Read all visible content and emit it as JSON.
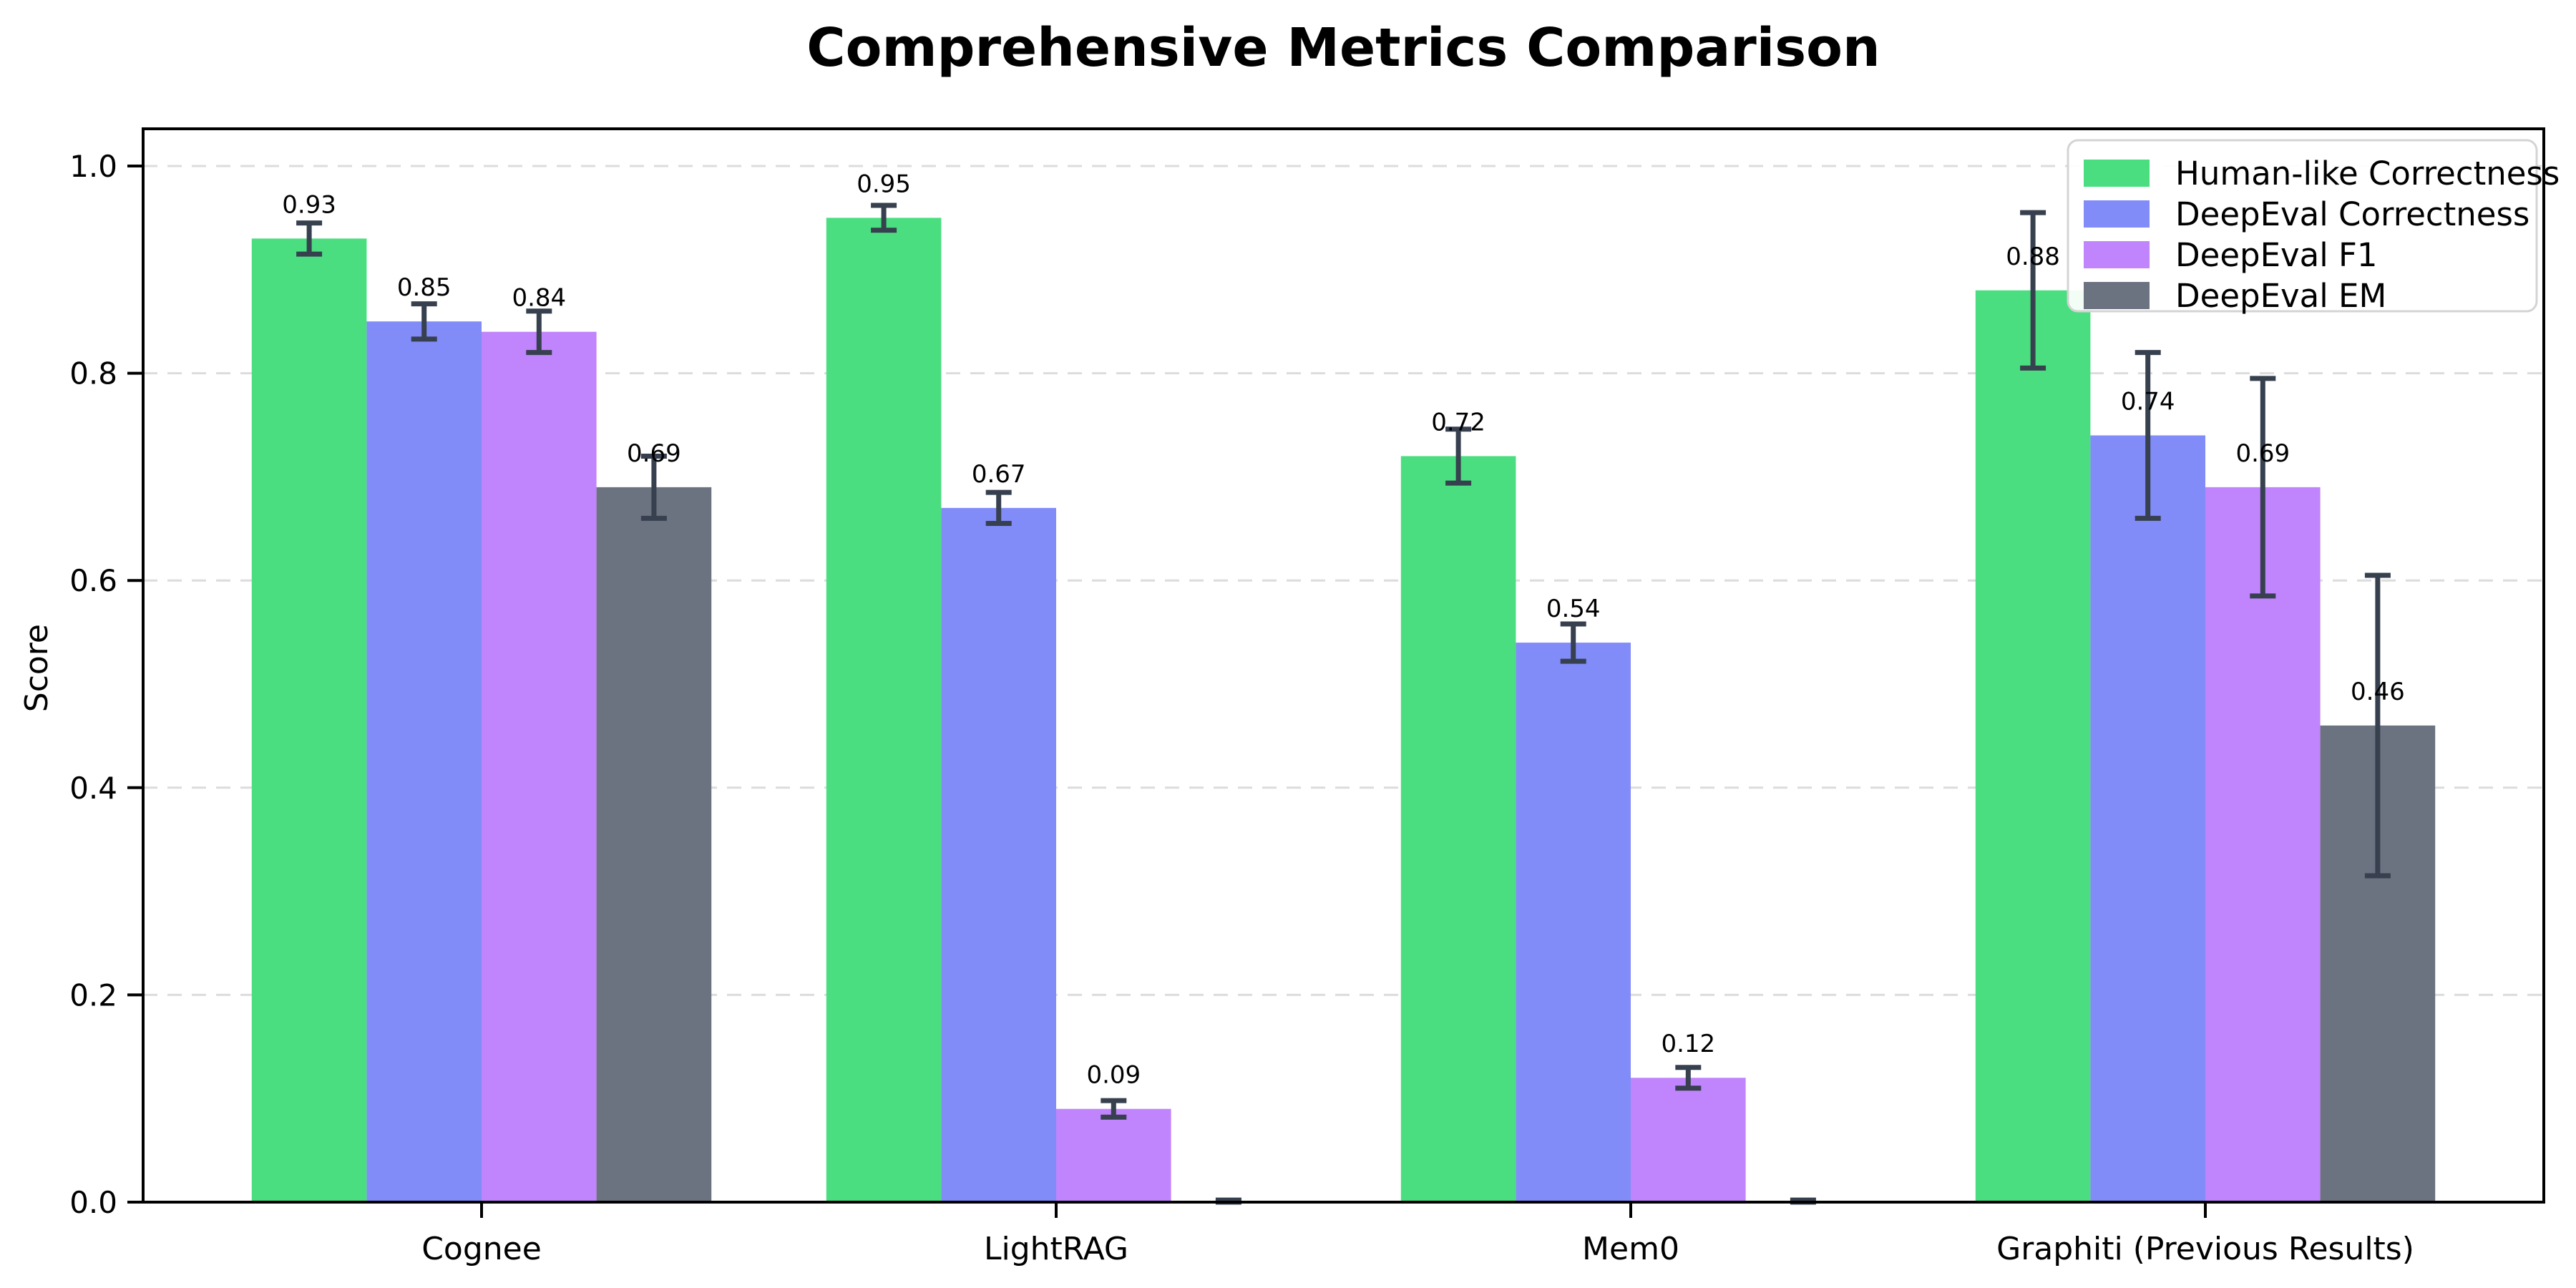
{
  "chart_data": {
    "type": "bar",
    "title": "Comprehensive Metrics Comparison",
    "ylabel": "Score",
    "xlabel": "",
    "categories": [
      "Cognee",
      "LightRAG",
      "Mem0",
      "Graphiti (Previous Results)"
    ],
    "series": [
      {
        "name": "Human-like Correctness",
        "color": "#4ade80",
        "values": [
          0.93,
          0.95,
          0.72,
          0.88
        ],
        "errors": [
          0.015,
          0.012,
          0.026,
          0.075
        ],
        "labels": [
          "0.93",
          "0.95",
          "0.72",
          "0.88"
        ]
      },
      {
        "name": "DeepEval Correctness",
        "color": "#818cf8",
        "values": [
          0.85,
          0.67,
          0.54,
          0.74
        ],
        "errors": [
          0.017,
          0.015,
          0.018,
          0.08
        ],
        "labels": [
          "0.85",
          "0.67",
          "0.54",
          "0.74"
        ]
      },
      {
        "name": "DeepEval F1",
        "color": "#c084fc",
        "values": [
          0.84,
          0.09,
          0.12,
          0.69
        ],
        "errors": [
          0.02,
          0.008,
          0.01,
          0.105
        ],
        "labels": [
          "0.84",
          "0.09",
          "0.12",
          "0.69"
        ]
      },
      {
        "name": "DeepEval EM",
        "color": "#6b7280",
        "values": [
          0.69,
          0.0,
          0.0,
          0.46
        ],
        "errors": [
          0.03,
          0.002,
          0.002,
          0.145
        ],
        "labels": [
          "0.69",
          null,
          null,
          "0.46"
        ]
      }
    ],
    "yticks": [
      0.0,
      0.2,
      0.4,
      0.6,
      0.8,
      1.0
    ],
    "ylim": [
      0,
      1.036
    ],
    "grid": "horizontal-dashed",
    "grid_color": "#dcdcdc",
    "legend_position": "upper-right",
    "error_bar_color": "#36404e",
    "axis_color": "#000000",
    "background": "#ffffff"
  }
}
